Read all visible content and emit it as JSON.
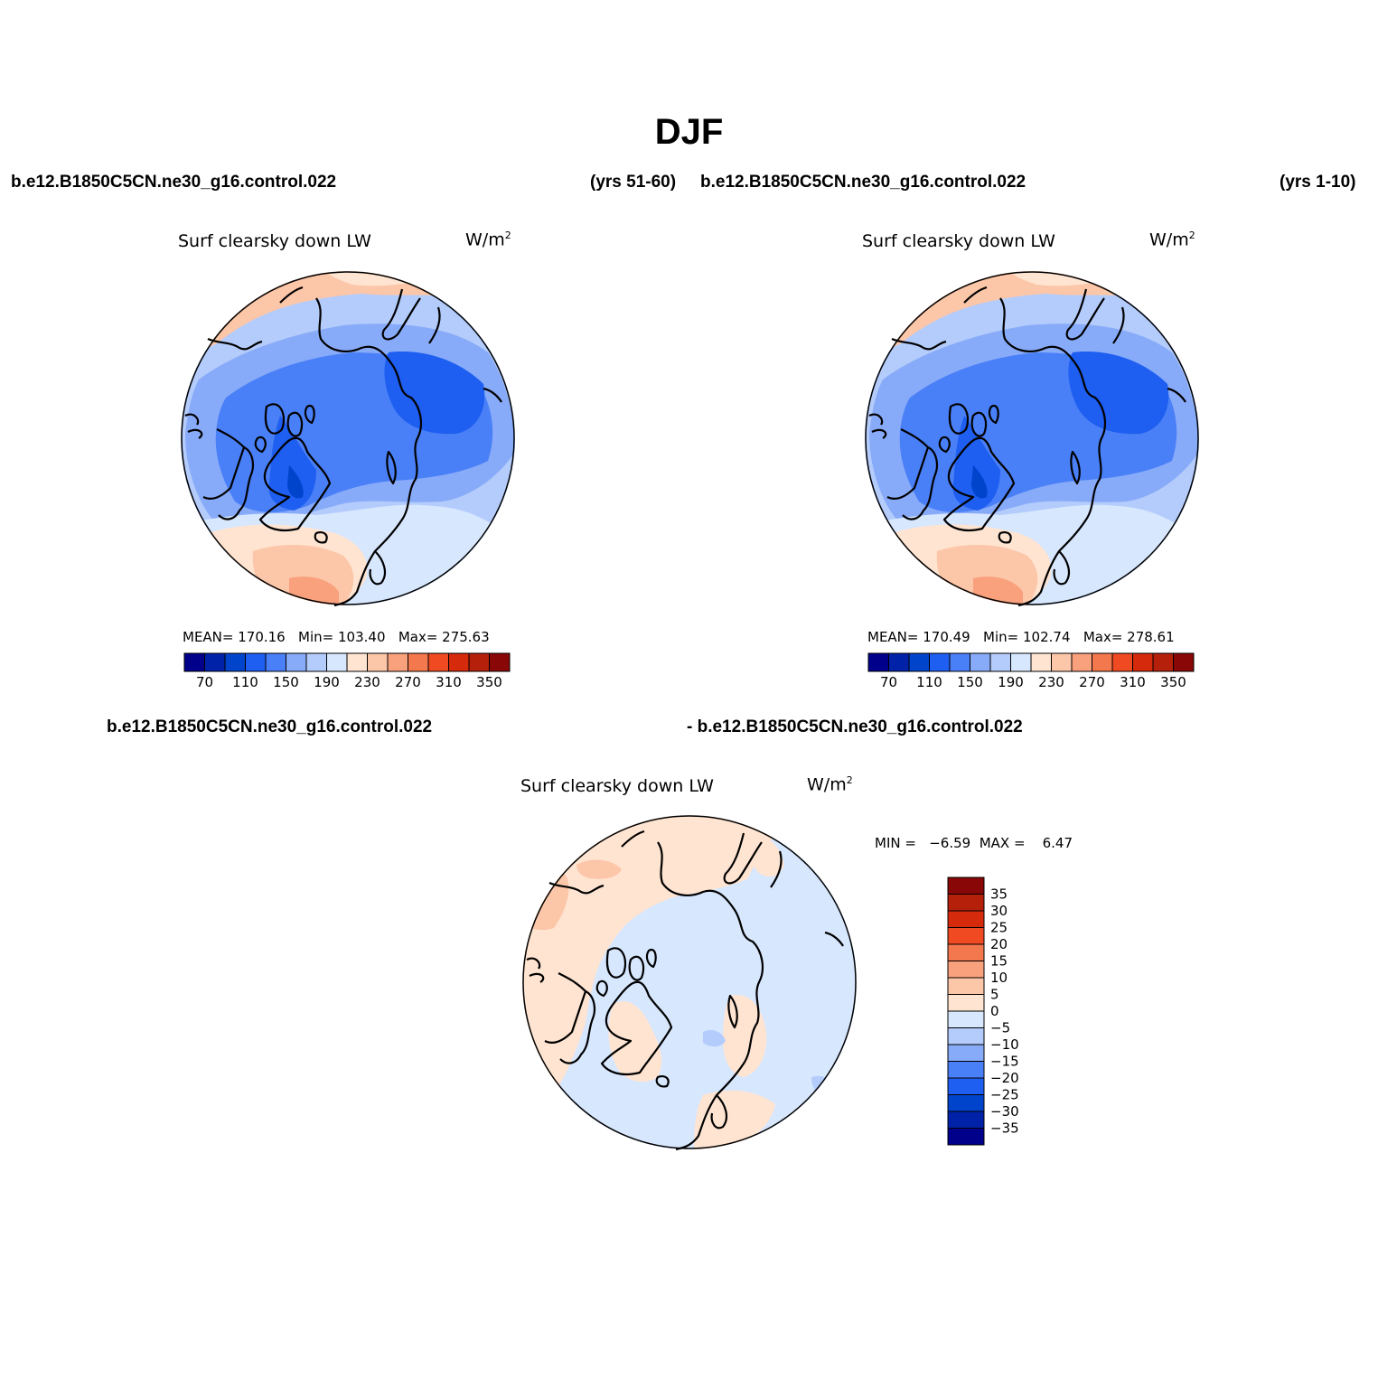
{
  "main_title": "DJF",
  "panels": [
    {
      "case_name": "b.e12.B1850C5CN.ne30_g16.control.022",
      "years": "(yrs 51-60)",
      "title": "Surf clearsky down LW",
      "units": "W/m",
      "units_exp": "2",
      "stats": {
        "mean": "MEAN= 170.16",
        "min": "Min= 103.40",
        "max": "Max= 275.63"
      },
      "colorbar": {
        "colors": [
          "#00008a",
          "#0022a8",
          "#0044cc",
          "#1e5ef0",
          "#4a80f7",
          "#88abf9",
          "#b4ccfc",
          "#d7e7fe",
          "#ffe4d1",
          "#fcc6a8",
          "#f9a07c",
          "#f4784d",
          "#f04a22",
          "#d52a0c",
          "#b5200a",
          "#8a0707"
        ],
        "tick_labels": [
          "70",
          "110",
          "150",
          "190",
          "230",
          "270",
          "310",
          "350"
        ]
      }
    },
    {
      "case_name": "b.e12.B1850C5CN.ne30_g16.control.022",
      "years": "(yrs 1-10)",
      "title": "Surf clearsky down LW",
      "units": "W/m",
      "units_exp": "2",
      "stats": {
        "mean": "MEAN= 170.49",
        "min": "Min= 102.74",
        "max": "Max= 278.61"
      },
      "colorbar": {
        "colors": [
          "#00008a",
          "#0022a8",
          "#0044cc",
          "#1e5ef0",
          "#4a80f7",
          "#88abf9",
          "#b4ccfc",
          "#d7e7fe",
          "#ffe4d1",
          "#fcc6a8",
          "#f9a07c",
          "#f4784d",
          "#f04a22",
          "#d52a0c",
          "#b5200a",
          "#8a0707"
        ],
        "tick_labels": [
          "70",
          "110",
          "150",
          "190",
          "230",
          "270",
          "310",
          "350"
        ]
      }
    }
  ],
  "diff_panel": {
    "case_a": "b.e12.B1850C5CN.ne30_g16.control.022",
    "case_b": "- b.e12.B1850C5CN.ne30_g16.control.022",
    "title": "Surf clearsky down LW",
    "units": "W/m",
    "units_exp": "2",
    "stats": "MIN =   −6.59  MAX =    6.47",
    "colorbar": {
      "colors": [
        "#8a0707",
        "#b5200a",
        "#d52a0c",
        "#f04a22",
        "#f4784d",
        "#f9a07c",
        "#fcc6a8",
        "#ffe4d1",
        "#d7e7fe",
        "#b4ccfc",
        "#88abf9",
        "#4a80f7",
        "#1e5ef0",
        "#0044cc",
        "#0022a8",
        "#00008a"
      ],
      "tick_labels": [
        "35",
        "30",
        "25",
        "20",
        "15",
        "10",
        "5",
        "0",
        "−5",
        "−10",
        "−15",
        "−20",
        "−25",
        "−30",
        "−35"
      ]
    }
  }
}
